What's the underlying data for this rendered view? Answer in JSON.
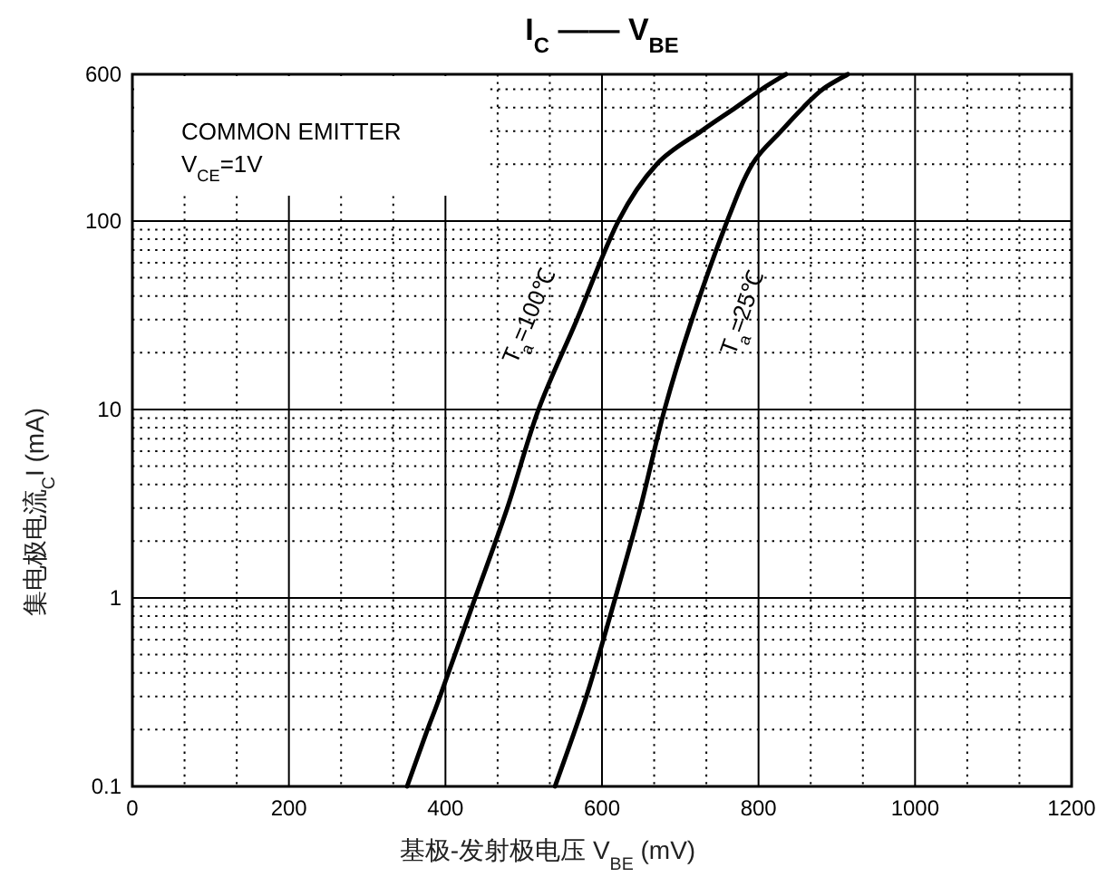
{
  "chart_data": {
    "type": "line",
    "title": "I$_{C}$ —— V$_{BE}$",
    "xlabel": "基极-发射极电压  V$_{BE}$ (mV)",
    "ylabel": "集电极电流$_{C}$I  (mA)",
    "annotations": [
      "COMMON EMITTER",
      "V$_{CE}$=1V"
    ],
    "log": "y",
    "xlim": [
      0,
      1200
    ],
    "xticks": [
      0,
      200,
      400,
      600,
      800,
      1000,
      1200
    ],
    "ylim": [
      0.1,
      600
    ],
    "yticks": [
      0.1,
      1,
      10,
      100,
      600
    ],
    "grid": true,
    "marker": "none",
    "line_style": "solid",
    "series": [
      {
        "name": "T$_{a}$=100℃",
        "color": "#000000",
        "x": [
          351,
          377,
          393,
          438,
          479,
          519,
          568,
          621,
          670,
          727,
          771,
          804,
          835
        ],
        "values": [
          0.1,
          0.2,
          0.3,
          1,
          3,
          10,
          30,
          100,
          200,
          300,
          400,
          500,
          600
        ]
      },
      {
        "name": "T$_{a}$=25℃",
        "color": "#000000",
        "x": [
          540,
          580,
          617,
          649,
          680,
          715,
          760,
          792,
          829,
          857,
          882,
          914
        ],
        "values": [
          0.1,
          0.3,
          1,
          3,
          10,
          30,
          100,
          200,
          300,
          400,
          500,
          600
        ]
      }
    ]
  }
}
